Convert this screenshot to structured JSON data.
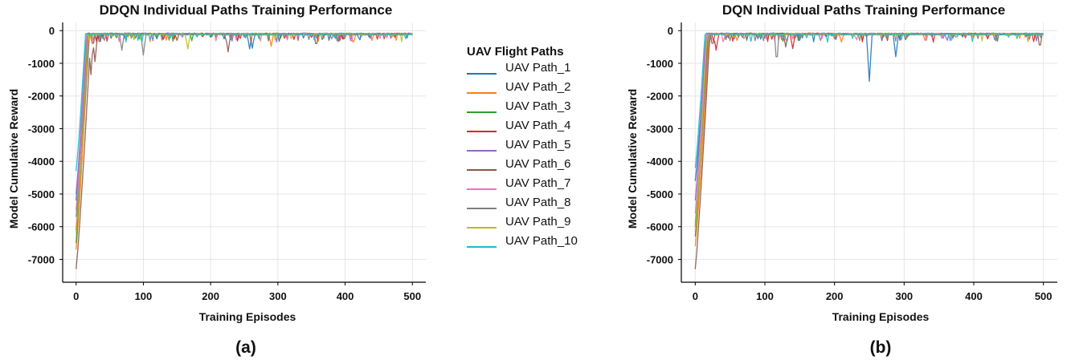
{
  "colors": [
    "#1f77b4",
    "#ff7f0e",
    "#2ca02c",
    "#d62728",
    "#9467bd",
    "#8c564b",
    "#e377c2",
    "#7f7f7f",
    "#bcbd22",
    "#17becf"
  ],
  "legend": {
    "title": "UAV Flight Paths",
    "items": [
      "UAV Path_1",
      "UAV Path_2",
      "UAV Path_3",
      "UAV Path_4",
      "UAV Path_5",
      "UAV Path_6",
      "UAV Path_7",
      "UAV Path_8",
      "UAV Path_9",
      "UAV Path_10"
    ]
  },
  "panels": [
    "(a)",
    "(b)"
  ],
  "chart_data": [
    {
      "type": "line",
      "title": "DDQN Individual Paths Training Performance",
      "xlabel": "Training Episodes",
      "ylabel": "Model Cumulative Reward",
      "xlim": [
        -20,
        520
      ],
      "ylim": [
        -7700,
        250
      ],
      "xticks": [
        0,
        100,
        200,
        300,
        400,
        500
      ],
      "yticks": [
        0,
        -1000,
        -2000,
        -3000,
        -4000,
        -5000,
        -6000,
        -7000
      ],
      "grid": true,
      "legend_position": "right",
      "episodes": 500,
      "baseline": -100,
      "series": [
        {
          "name": "UAV Path_1",
          "start": -5200,
          "conv_ep": 17,
          "dips": [
            [
              258,
              -560
            ],
            [
              262,
              -540
            ],
            [
              120,
              -250
            ]
          ]
        },
        {
          "name": "UAV Path_2",
          "start": -6700,
          "conv_ep": 19,
          "dips": [
            [
              290,
              -480
            ],
            [
              440,
              -300
            ],
            [
              30,
              -300
            ],
            [
              410,
              -250
            ]
          ]
        },
        {
          "name": "UAV Path_3",
          "start": -6500,
          "conv_ep": 16,
          "dips": [
            [
              60,
              -220
            ],
            [
              200,
              -180
            ]
          ]
        },
        {
          "name": "UAV Path_4",
          "start": -6100,
          "conv_ep": 18,
          "dips": [
            [
              25,
              -700
            ],
            [
              130,
              -260
            ],
            [
              310,
              -230
            ]
          ]
        },
        {
          "name": "UAV Path_5",
          "start": -5000,
          "conv_ep": 15,
          "dips": [
            [
              85,
              -300
            ],
            [
              250,
              -200
            ]
          ]
        },
        {
          "name": "UAV Path_6",
          "start": -7300,
          "conv_ep": 22,
          "dips": [
            [
              22,
              -1350
            ],
            [
              28,
              -950
            ],
            [
              226,
              -650
            ],
            [
              357,
              -720
            ],
            [
              35,
              -600
            ],
            [
              150,
              -300
            ]
          ]
        },
        {
          "name": "UAV Path_7",
          "start": -5500,
          "conv_ep": 16,
          "dips": [
            [
              45,
              -250
            ],
            [
              330,
              -200
            ]
          ]
        },
        {
          "name": "UAV Path_8",
          "start": -5700,
          "conv_ep": 20,
          "dips": [
            [
              100,
              -750
            ],
            [
              68,
              -600
            ],
            [
              42,
              -300
            ],
            [
              230,
              -280
            ],
            [
              380,
              -250
            ]
          ]
        },
        {
          "name": "UAV Path_9",
          "start": -6200,
          "conv_ep": 18,
          "dips": [
            [
              166,
              -560
            ],
            [
              55,
              -300
            ],
            [
              470,
              -200
            ]
          ]
        },
        {
          "name": "UAV Path_10",
          "start": -4300,
          "conv_ep": 14,
          "dips": [
            [
              180,
              -200
            ],
            [
              400,
              -180
            ]
          ]
        }
      ]
    },
    {
      "type": "line",
      "title": "DQN Individual Paths Training Performance",
      "xlabel": "Training Episodes",
      "ylabel": "Model Cumulative Reward",
      "xlim": [
        -20,
        520
      ],
      "ylim": [
        -7700,
        250
      ],
      "xticks": [
        0,
        100,
        200,
        300,
        400,
        500
      ],
      "yticks": [
        0,
        -1000,
        -2000,
        -3000,
        -4000,
        -5000,
        -6000,
        -7000
      ],
      "grid": true,
      "episodes": 500,
      "baseline": -100,
      "series": [
        {
          "name": "UAV Path_1",
          "start": -4600,
          "conv_ep": 16,
          "dips": [
            [
              250,
              -1550
            ],
            [
              288,
              -800
            ],
            [
              150,
              -300
            ]
          ]
        },
        {
          "name": "UAV Path_2",
          "start": -6600,
          "conv_ep": 20,
          "dips": [
            [
              210,
              -350
            ],
            [
              330,
              -300
            ],
            [
              60,
              -300
            ]
          ]
        },
        {
          "name": "UAV Path_3",
          "start": -6300,
          "conv_ep": 17,
          "dips": [
            [
              90,
              -250
            ],
            [
              270,
              -200
            ]
          ]
        },
        {
          "name": "UAV Path_4",
          "start": -6000,
          "conv_ep": 18,
          "dips": [
            [
              140,
              -550
            ],
            [
              30,
              -600
            ],
            [
              420,
              -250
            ]
          ]
        },
        {
          "name": "UAV Path_5",
          "start": -5200,
          "conv_ep": 15,
          "dips": [
            [
              180,
              -300
            ],
            [
              360,
              -200
            ]
          ]
        },
        {
          "name": "UAV Path_6",
          "start": -7300,
          "conv_ep": 21,
          "dips": [
            [
              495,
              -800
            ],
            [
              130,
              -500
            ],
            [
              25,
              -700
            ],
            [
              305,
              -300
            ]
          ]
        },
        {
          "name": "UAV Path_7",
          "start": -5600,
          "conv_ep": 16,
          "dips": [
            [
              70,
              -250
            ],
            [
              230,
              -200
            ]
          ]
        },
        {
          "name": "UAV Path_8",
          "start": -5900,
          "conv_ep": 19,
          "dips": [
            [
              117,
              -1450
            ],
            [
              375,
              -350
            ],
            [
              45,
              -350
            ],
            [
              200,
              -250
            ]
          ]
        },
        {
          "name": "UAV Path_9",
          "start": -6100,
          "conv_ep": 17,
          "dips": [
            [
              55,
              -350
            ],
            [
              400,
              -220
            ]
          ]
        },
        {
          "name": "UAV Path_10",
          "start": -4200,
          "conv_ep": 14,
          "dips": [
            [
              160,
              -220
            ],
            [
              450,
              -200
            ]
          ]
        }
      ]
    }
  ]
}
